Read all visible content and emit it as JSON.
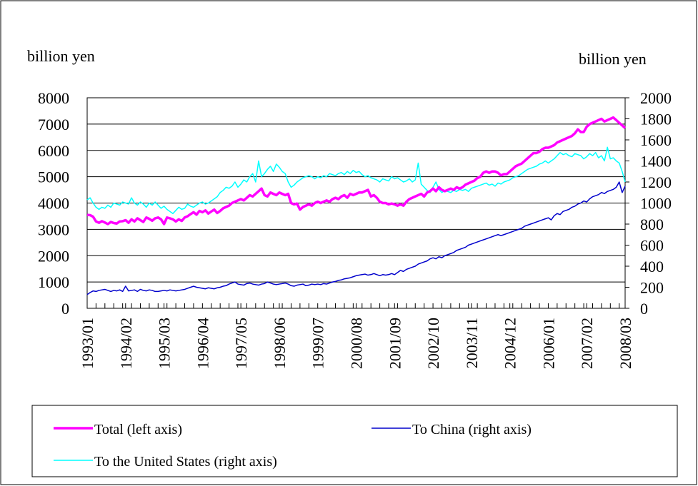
{
  "chart_data": {
    "type": "line",
    "y_label": "billion yen",
    "y2_label": "billion yen",
    "categories": [
      "1993/01",
      null,
      null,
      null,
      null,
      null,
      null,
      null,
      null,
      null,
      null,
      null,
      null,
      "1994/02",
      null,
      null,
      null,
      null,
      null,
      null,
      null,
      null,
      null,
      null,
      null,
      null,
      "1995/03",
      null,
      null,
      null,
      null,
      null,
      null,
      null,
      null,
      null,
      null,
      null,
      null,
      "1996/04",
      null,
      null,
      null,
      null,
      null,
      null,
      null,
      null,
      null,
      null,
      null,
      null,
      "1997/05",
      null,
      null,
      null,
      null,
      null,
      null,
      null,
      null,
      null,
      null,
      null,
      null,
      "1998/06",
      null,
      null,
      null,
      null,
      null,
      null,
      null,
      null,
      null,
      null,
      null,
      null,
      "1999/07",
      null,
      null,
      null,
      null,
      null,
      null,
      null,
      null,
      null,
      null,
      null,
      null,
      "2000/08",
      null,
      null,
      null,
      null,
      null,
      null,
      null,
      null,
      null,
      null,
      null,
      null,
      "2001/09",
      null,
      null,
      null,
      null,
      null,
      null,
      null,
      null,
      null,
      null,
      null,
      null,
      "2002/10",
      null,
      null,
      null,
      null,
      null,
      null,
      null,
      null,
      null,
      null,
      null,
      null,
      "2003/11",
      null,
      null,
      null,
      null,
      null,
      null,
      null,
      null,
      null,
      null,
      null,
      null,
      "2004/12",
      null,
      null,
      null,
      null,
      null,
      null,
      null,
      null,
      null,
      null,
      null,
      null,
      "2006/01",
      null,
      null,
      null,
      null,
      null,
      null,
      null,
      null,
      null,
      null,
      null,
      null,
      "2007/02",
      null,
      null,
      null,
      null,
      null,
      null,
      null,
      null,
      null,
      null,
      null,
      null,
      "2008/03"
    ],
    "series": [
      {
        "name": "Total (left axis)",
        "color": "#ff00ff",
        "width": 3.5,
        "values": [
          3550,
          3540,
          3480,
          3300,
          3250,
          3310,
          3260,
          3200,
          3280,
          3240,
          3220,
          3300,
          3310,
          3350,
          3250,
          3380,
          3300,
          3420,
          3350,
          3280,
          3450,
          3400,
          3330,
          3420,
          3450,
          3380,
          3200,
          3450,
          3420,
          3380,
          3300,
          3380,
          3320,
          3450,
          3500,
          3580,
          3650,
          3560,
          3700,
          3650,
          3720,
          3600,
          3680,
          3750,
          3620,
          3700,
          3800,
          3850,
          3900,
          4000,
          4050,
          4100,
          4150,
          4100,
          4200,
          4300,
          4250,
          4350,
          4450,
          4550,
          4300,
          4250,
          4400,
          4350,
          4300,
          4400,
          4350,
          4300,
          4350,
          4000,
          3950,
          3980,
          3750,
          3850,
          3900,
          3950,
          3900,
          4000,
          4050,
          4000,
          4050,
          4100,
          4050,
          4150,
          4200,
          4150,
          4250,
          4300,
          4200,
          4350,
          4300,
          4350,
          4400,
          4400,
          4450,
          4500,
          4250,
          4300,
          4200,
          4050,
          4000,
          4000,
          3950,
          3980,
          3950,
          3900,
          3950,
          3900,
          4050,
          4150,
          4200,
          4250,
          4300,
          4350,
          4250,
          4400,
          4450,
          4550,
          4450,
          4600,
          4500,
          4450,
          4500,
          4550,
          4500,
          4600,
          4550,
          4600,
          4700,
          4750,
          4800,
          4850,
          4950,
          5000,
          5150,
          5200,
          5150,
          5200,
          5200,
          5150,
          5050,
          5100,
          5100,
          5200,
          5300,
          5400,
          5450,
          5500,
          5600,
          5700,
          5800,
          5900,
          5900,
          5950,
          6050,
          6100,
          6100,
          6150,
          6200,
          6300,
          6350,
          6400,
          6450,
          6500,
          6550,
          6650,
          6800,
          6700,
          6700,
          6900,
          7000,
          7050,
          7100,
          7150,
          7200,
          7100,
          7150,
          7200,
          7250,
          7150,
          7050,
          6950,
          6850
        ]
      },
      {
        "name": "To China (right axis)",
        "color": "#0000cc",
        "width": 1.5,
        "axis": "y2",
        "values": [
          130,
          150,
          165,
          160,
          170,
          175,
          180,
          170,
          160,
          170,
          165,
          175,
          160,
          210,
          165,
          170,
          175,
          160,
          180,
          170,
          165,
          175,
          170,
          160,
          160,
          165,
          170,
          165,
          175,
          170,
          165,
          170,
          175,
          180,
          190,
          200,
          210,
          200,
          195,
          190,
          185,
          195,
          190,
          185,
          195,
          200,
          210,
          215,
          230,
          240,
          250,
          230,
          225,
          220,
          235,
          240,
          230,
          225,
          220,
          230,
          235,
          250,
          240,
          230,
          225,
          230,
          235,
          240,
          230,
          215,
          210,
          220,
          225,
          230,
          215,
          220,
          230,
          225,
          230,
          225,
          235,
          230,
          240,
          250,
          255,
          265,
          270,
          280,
          285,
          290,
          300,
          310,
          315,
          320,
          325,
          315,
          320,
          330,
          320,
          310,
          320,
          315,
          320,
          330,
          320,
          340,
          360,
          350,
          370,
          380,
          390,
          400,
          420,
          430,
          440,
          450,
          470,
          480,
          470,
          490,
          480,
          500,
          510,
          520,
          530,
          550,
          560,
          570,
          580,
          600,
          610,
          620,
          630,
          640,
          650,
          660,
          670,
          680,
          690,
          700,
          690,
          700,
          710,
          720,
          730,
          740,
          750,
          760,
          780,
          790,
          800,
          810,
          820,
          830,
          840,
          850,
          860,
          840,
          880,
          900,
          890,
          920,
          930,
          940,
          960,
          970,
          990,
          1000,
          1020,
          1010,
          1040,
          1060,
          1070,
          1080,
          1100,
          1090,
          1110,
          1120,
          1130,
          1150,
          1200,
          1100,
          1160
        ]
      },
      {
        "name": "To the United States (right axis)",
        "color": "#00ffff",
        "width": 1.5,
        "axis": "y2",
        "values": [
          1030,
          1050,
          1000,
          960,
          940,
          960,
          950,
          980,
          960,
          1000,
          990,
          980,
          1010,
          1000,
          990,
          1050,
          1000,
          980,
          1010,
          990,
          960,
          1000,
          980,
          1010,
          980,
          950,
          970,
          940,
          920,
          900,
          930,
          960,
          940,
          950,
          990,
          970,
          960,
          980,
          1000,
          1010,
          990,
          1000,
          1020,
          1040,
          1060,
          1100,
          1120,
          1150,
          1140,
          1160,
          1200,
          1150,
          1180,
          1220,
          1200,
          1250,
          1280,
          1200,
          1400,
          1250,
          1280,
          1320,
          1350,
          1300,
          1370,
          1340,
          1300,
          1280,
          1200,
          1150,
          1170,
          1200,
          1220,
          1240,
          1250,
          1260,
          1250,
          1230,
          1250,
          1240,
          1260,
          1250,
          1280,
          1270,
          1260,
          1280,
          1290,
          1270,
          1300,
          1280,
          1310,
          1290,
          1300,
          1270,
          1250,
          1260,
          1240,
          1230,
          1220,
          1200,
          1230,
          1220,
          1210,
          1250,
          1230,
          1240,
          1220,
          1200,
          1210,
          1230,
          1200,
          1220,
          1380,
          1180,
          1150,
          1120,
          1100,
          1150,
          1200,
          1130,
          1100,
          1120,
          1110,
          1100,
          1120,
          1110,
          1130,
          1120,
          1130,
          1110,
          1140,
          1150,
          1160,
          1170,
          1180,
          1190,
          1170,
          1180,
          1160,
          1190,
          1180,
          1200,
          1210,
          1220,
          1240,
          1250,
          1260,
          1280,
          1300,
          1320,
          1330,
          1340,
          1350,
          1370,
          1380,
          1400,
          1380,
          1400,
          1420,
          1450,
          1480,
          1460,
          1470,
          1450,
          1440,
          1470,
          1460,
          1450,
          1420,
          1440,
          1470,
          1450,
          1480,
          1430,
          1450,
          1400,
          1530,
          1420,
          1430,
          1400,
          1380,
          1300,
          1200
        ]
      }
    ],
    "ylim": [
      0,
      8000
    ],
    "yticks": [
      0,
      1000,
      2000,
      3000,
      4000,
      5000,
      6000,
      7000,
      8000
    ],
    "y2lim": [
      0,
      2000
    ],
    "y2ticks": [
      0,
      200,
      400,
      600,
      800,
      1000,
      1200,
      1400,
      1600,
      1800,
      2000
    ],
    "grid": true,
    "legend": "bottom"
  }
}
